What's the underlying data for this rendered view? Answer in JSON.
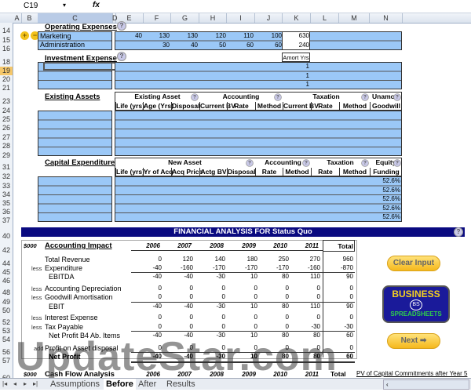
{
  "formula_bar": {
    "cell_ref": "C19",
    "fx_label": "fx",
    "formula": ""
  },
  "columns": [
    "A",
    "B",
    "C",
    "D",
    "E",
    "F",
    "G",
    "H",
    "I",
    "J",
    "K",
    "L",
    "M",
    "N"
  ],
  "row_numbers": [
    "14",
    "15",
    "16",
    "18",
    "19",
    "20",
    "21",
    "23",
    "24",
    "25",
    "26",
    "27",
    "28",
    "29",
    "31",
    "32",
    "33",
    "34",
    "35",
    "36",
    "37",
    "40",
    "42",
    "44",
    "45",
    "46",
    "48",
    "49",
    "50",
    "52",
    "53",
    "54",
    "56",
    "57",
    "60"
  ],
  "operating": {
    "title": "Operating Expenses",
    "rows": [
      {
        "label": "Marketing",
        "values": [
          "40",
          "130",
          "130",
          "120",
          "110",
          "100"
        ],
        "total": "630"
      },
      {
        "label": "Administration",
        "values": [
          "",
          "30",
          "40",
          "50",
          "60",
          "60"
        ],
        "total": "240"
      }
    ]
  },
  "investment": {
    "title": "Investment Expense",
    "amort_label": "Amort Yrs",
    "amort_values": [
      "1",
      "1",
      "1"
    ]
  },
  "existing": {
    "title": "Existing Assets",
    "groups": [
      "Existing Asset",
      "Accounting",
      "Taxation",
      "Unamort"
    ],
    "headers": [
      "Life (yrs)",
      "Age (Yrs)",
      "Disposal",
      "Current BV",
      "Rate",
      "Method",
      "Current BV",
      "Rate",
      "Method",
      "Goodwill"
    ]
  },
  "capex": {
    "title": "Capital Expenditure",
    "groups": [
      "New Asset",
      "Accounting",
      "Taxation",
      "Equity"
    ],
    "headers": [
      "Life (yrs)",
      "Yr of Acq",
      "Acq Price",
      "Actg BV",
      "Disposal",
      "Rate",
      "Method",
      "Rate",
      "Method",
      "Funding"
    ],
    "equity_values": [
      "52.6%",
      "52.6%",
      "52.6%",
      "52.6%",
      "52.6%"
    ]
  },
  "analysis": {
    "banner": "FINANCIAL ANALYSIS FOR Status Quo",
    "unit": "$000",
    "section": "Accounting Impact",
    "years": [
      "2006",
      "2007",
      "2008",
      "2009",
      "2010",
      "2011"
    ],
    "total_label": "Total",
    "rows": [
      {
        "prefix": "",
        "label": "Total Revenue",
        "values": [
          "0",
          "120",
          "140",
          "180",
          "250",
          "270"
        ],
        "total": "960"
      },
      {
        "prefix": "less",
        "label": "Expenditure",
        "values": [
          "-40",
          "-160",
          "-170",
          "-170",
          "-170",
          "-160"
        ],
        "total": "-870"
      },
      {
        "prefix": "",
        "label": "EBITDA",
        "values": [
          "-40",
          "-40",
          "-30",
          "10",
          "80",
          "110"
        ],
        "total": "90"
      },
      {
        "prefix": "less",
        "label": "Accounting Depreciation",
        "values": [
          "0",
          "0",
          "0",
          "0",
          "0",
          "0"
        ],
        "total": "0"
      },
      {
        "prefix": "less",
        "label": "Goodwill Amortisation",
        "values": [
          "0",
          "0",
          "0",
          "0",
          "0",
          "0"
        ],
        "total": "0"
      },
      {
        "prefix": "",
        "label": "EBIT",
        "values": [
          "-40",
          "-40",
          "-30",
          "10",
          "80",
          "110"
        ],
        "total": "90"
      },
      {
        "prefix": "less",
        "label": "Interest Expense",
        "values": [
          "0",
          "0",
          "0",
          "0",
          "0",
          "0"
        ],
        "total": "0"
      },
      {
        "prefix": "less",
        "label": "Tax Payable",
        "values": [
          "0",
          "0",
          "0",
          "0",
          "0",
          "-30"
        ],
        "total": "-30"
      },
      {
        "prefix": "",
        "label": "Net Profit B4 Ab. Items",
        "values": [
          "-40",
          "-40",
          "-30",
          "10",
          "80",
          "80"
        ],
        "total": "60"
      },
      {
        "prefix": "add",
        "label": "Profit on Asset disposal",
        "values": [
          "0",
          "0",
          "0",
          "0",
          "0",
          "0"
        ],
        "total": "0"
      },
      {
        "prefix": "",
        "label": "Net Profit",
        "values": [
          "-40",
          "-40",
          "-30",
          "10",
          "80",
          "80"
        ],
        "total": "60"
      }
    ],
    "cashflow": {
      "unit": "$000",
      "section": "Cash Flow Analysis",
      "years": [
        "2006",
        "2007",
        "2008",
        "2009",
        "2010",
        "2011"
      ],
      "total_label": "Total",
      "pv_label": "PV of Capital Commitments after Year 5"
    }
  },
  "buttons": {
    "clear": "Clear Input",
    "next": "Next",
    "logo_top": "BUSINESS",
    "logo_bottom": "SPREADSHEETS",
    "logo_mid": "BS"
  },
  "sheet_tabs": [
    "Assumptions",
    "Before",
    "After",
    "Results"
  ],
  "active_tab": "Before",
  "watermark": "UpdateStar.com",
  "help_glyph": "?",
  "colors": {
    "input_blue": "#9bc8f7",
    "banner_navy": "#0a0a80",
    "button_gold": "#f5b81c"
  }
}
